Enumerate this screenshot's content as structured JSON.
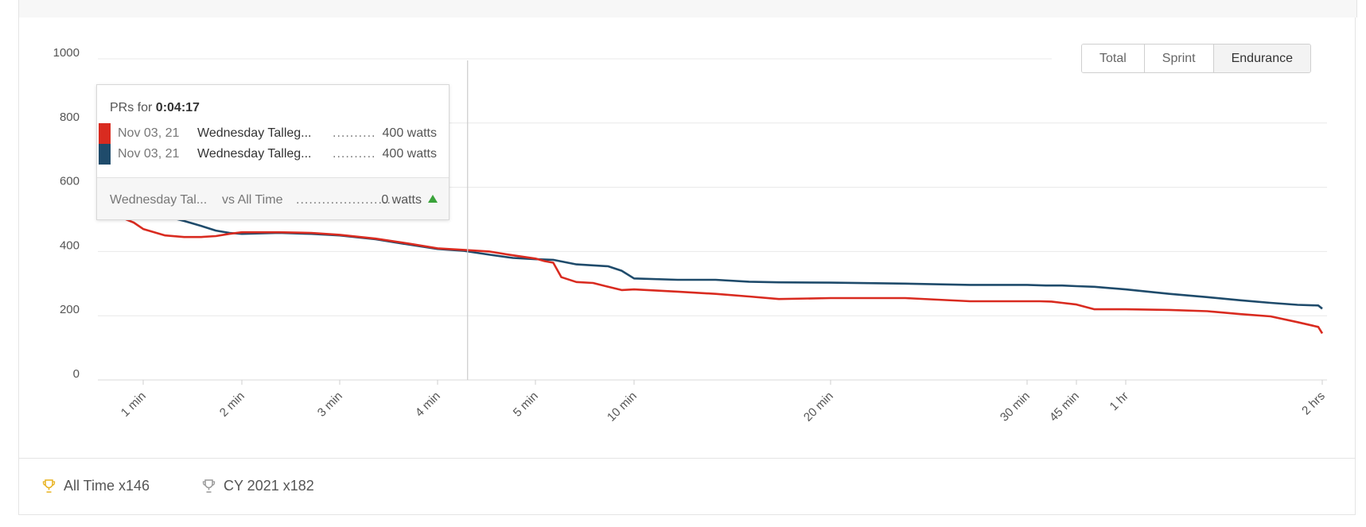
{
  "chart_data": {
    "type": "line",
    "x_scale": "log",
    "x_unit": "seconds",
    "y_ticks": [
      0,
      200,
      400,
      600,
      800,
      1000
    ],
    "y_tick_labels": [
      "0",
      "200",
      "400",
      "600",
      "800",
      "1000"
    ],
    "ylim": [
      0,
      1000
    ],
    "x_ticks": [
      60,
      120,
      180,
      240,
      300,
      600,
      1200,
      1800,
      2700,
      3600,
      7200
    ],
    "x_tick_labels": [
      "1 min",
      "2 min",
      "3 min",
      "4 min",
      "5 min",
      "10 min",
      "20 min",
      "30 min",
      "45 min",
      "1 hr",
      "2 hrs"
    ],
    "grid": true,
    "hover_x": 257,
    "series": [
      {
        "color": "#d92b20",
        "x": [
          25,
          30,
          40,
          50,
          60,
          70,
          80,
          90,
          100,
          110,
          120,
          140,
          160,
          180,
          200,
          220,
          240,
          255,
          270,
          285,
          300,
          320,
          340,
          360,
          400,
          450,
          500,
          550,
          600,
          700,
          800,
          900,
          1000,
          1200,
          1400,
          1600,
          1800,
          2000,
          2200,
          2400,
          2700,
          3000,
          3600,
          4200,
          4800,
          5400,
          6000,
          6600,
          7100,
          7200
        ],
        "y": [
          550,
          525,
          505,
          490,
          470,
          450,
          445,
          445,
          448,
          455,
          460,
          460,
          458,
          452,
          440,
          425,
          410,
          405,
          400,
          388,
          378,
          370,
          365,
          320,
          305,
          302,
          290,
          280,
          282,
          275,
          268,
          260,
          252,
          255,
          255,
          245,
          245,
          245,
          244,
          240,
          235,
          220,
          220,
          218,
          214,
          205,
          198,
          180,
          165,
          145
        ]
      },
      {
        "color": "#1f4b6b",
        "x": [
          25,
          30,
          40,
          50,
          60,
          70,
          80,
          90,
          100,
          110,
          120,
          140,
          160,
          180,
          200,
          220,
          240,
          255,
          270,
          285,
          300,
          340,
          400,
          500,
          550,
          600,
          700,
          800,
          900,
          1000,
          1200,
          1400,
          1600,
          1800,
          2100,
          2400,
          2700,
          3000,
          3600,
          4200,
          4800,
          5400,
          6000,
          6600,
          7100,
          7200
        ],
        "y": [
          820,
          740,
          650,
          590,
          545,
          510,
          495,
          480,
          465,
          458,
          455,
          458,
          455,
          450,
          438,
          422,
          408,
          402,
          390,
          380,
          376,
          374,
          360,
          354,
          340,
          316,
          312,
          312,
          306,
          304,
          303,
          300,
          296,
          296,
          294,
          294,
          292,
          290,
          282,
          268,
          258,
          248,
          240,
          234,
          232,
          222
        ]
      }
    ]
  },
  "toggles": [
    {
      "label": "Total",
      "active": false
    },
    {
      "label": "Sprint",
      "active": false
    },
    {
      "label": "Endurance",
      "active": true
    }
  ],
  "tooltip": {
    "title_prefix": "PRs for",
    "title_time": "0:04:17",
    "rows": [
      {
        "color": "#d92b20",
        "date": "Nov 03, 21",
        "name": "Wednesday Talleg...",
        "dots": "..........",
        "value": "400 watts"
      },
      {
        "color": "#1f4b6b",
        "date": "Nov 03, 21",
        "name": "Wednesday Talleg...",
        "dots": "..........",
        "value": "400 watts"
      }
    ],
    "footer": {
      "left": "Wednesday Tal...",
      "vs": "vs All Time",
      "dots": "......................",
      "value": "0 watts"
    }
  },
  "badges": [
    {
      "label": "All Time x146",
      "icon": "trophy-icon",
      "color": "#e8b21f"
    },
    {
      "label": "CY 2021 x182",
      "icon": "trophy-icon",
      "color": "#999999"
    }
  ]
}
